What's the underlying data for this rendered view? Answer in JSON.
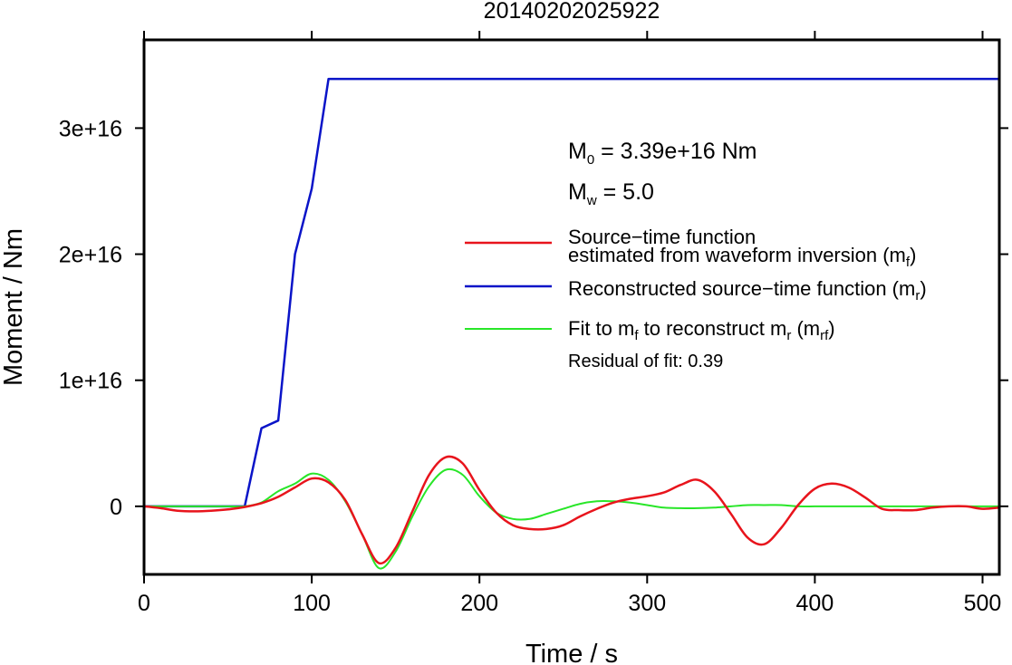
{
  "chart_data": {
    "type": "line",
    "title": "20140202025922",
    "xlabel": "Time / s",
    "ylabel": "Moment / Nm",
    "xlim": [
      0,
      510
    ],
    "ylim": [
      -5400000000000000.0,
      3.7e+16
    ],
    "x_ticks": [
      0,
      100,
      200,
      300,
      400,
      500
    ],
    "x_tick_labels": [
      "0",
      "100",
      "200",
      "300",
      "400",
      "500"
    ],
    "y_ticks": [
      0,
      1e+16,
      2e+16,
      3e+16
    ],
    "y_tick_labels": [
      "0",
      "1e+16",
      "2e+16",
      "3e+16"
    ],
    "grid": false,
    "legend_position": "right",
    "annotations": {
      "m0": {
        "prefix": "M",
        "sub": "0",
        "rest": " = 3.39e+16 Nm"
      },
      "mw": {
        "prefix": "M",
        "sub": "w",
        "rest": " = 5.0"
      },
      "residual": "Residual of fit: 0.39"
    },
    "legend": [
      {
        "key": "red",
        "lines": [
          "Source−time function",
          "estimated from waveform inversion (m"
        ],
        "sub": "f",
        "tail": ")"
      },
      {
        "key": "blue",
        "text": "Reconstructed source−time function (m",
        "sub": "r",
        "tail": ")"
      },
      {
        "key": "green",
        "text_a": "Fit to m",
        "sub_a": "f",
        "text_b": " to reconstruct m",
        "sub_b": "r",
        "text_c": " (m",
        "sub_c": "rf",
        "tail": ")"
      }
    ],
    "series": [
      {
        "key": "red",
        "color": "#e8141c",
        "x": [
          0,
          10,
          20,
          30,
          40,
          50,
          60,
          70,
          80,
          90,
          100,
          110,
          120,
          130,
          140,
          150,
          160,
          170,
          180,
          190,
          200,
          210,
          220,
          230,
          240,
          250,
          260,
          270,
          280,
          290,
          300,
          310,
          320,
          330,
          340,
          350,
          360,
          370,
          380,
          390,
          400,
          410,
          420,
          430,
          440,
          450,
          460,
          470,
          480,
          490,
          500,
          510
        ],
        "y": [
          0,
          -150000000000000.0,
          -350000000000000.0,
          -400000000000000.0,
          -350000000000000.0,
          -250000000000000.0,
          -50000000000000.0,
          250000000000000.0,
          750000000000000.0,
          1500000000000000.0,
          2200000000000000.0,
          1900000000000000.0,
          500000000000000.0,
          -2200000000000000.0,
          -4500000000000000.0,
          -3300000000000000.0,
          -400000000000000.0,
          2500000000000000.0,
          3900000000000000.0,
          3400000000000000.0,
          1300000000000000.0,
          -500000000000000.0,
          -1500000000000000.0,
          -1800000000000000.0,
          -1800000000000000.0,
          -1500000000000000.0,
          -800000000000000.0,
          -200000000000000.0,
          300000000000000.0,
          600000000000000.0,
          800000000000000.0,
          1100000000000000.0,
          1700000000000000.0,
          2100000000000000.0,
          1200000000000000.0,
          -600000000000000.0,
          -2500000000000000.0,
          -3000000000000000.0,
          -1700000000000000.0,
          100000000000000.0,
          1400000000000000.0,
          1800000000000000.0,
          1500000000000000.0,
          700000000000000.0,
          -200000000000000.0,
          -300000000000000.0,
          -300000000000000.0,
          -100000000000000.0,
          0,
          0,
          -200000000000000.0,
          -100000000000000.0
        ]
      },
      {
        "key": "blue",
        "color": "#0a14c8",
        "x": [
          0,
          60,
          70,
          80,
          90,
          100,
          110,
          510
        ],
        "y": [
          0,
          0,
          6200000000000000.0,
          6800000000000000.0,
          2e+16,
          2.52e+16,
          3.39e+16,
          3.39e+16
        ]
      },
      {
        "key": "green",
        "color": "#28e628",
        "x": [
          0,
          10,
          20,
          30,
          40,
          50,
          60,
          70,
          80,
          90,
          100,
          110,
          120,
          130,
          140,
          150,
          160,
          170,
          180,
          190,
          200,
          210,
          220,
          230,
          240,
          250,
          260,
          270,
          280,
          290,
          300,
          310,
          320,
          330,
          340,
          350,
          360,
          370,
          380,
          390,
          400,
          410,
          420,
          430,
          440,
          450,
          460,
          470,
          480,
          490,
          500,
          510
        ],
        "y": [
          0,
          0,
          0,
          0,
          0,
          0,
          0,
          300000000000000.0,
          1200000000000000.0,
          1800000000000000.0,
          2600000000000000.0,
          2100000000000000.0,
          400000000000000.0,
          -2200000000000000.0,
          -4900000000000000.0,
          -3600000000000000.0,
          -800000000000000.0,
          1600000000000000.0,
          2900000000000000.0,
          2500000000000000.0,
          800000000000000.0,
          -500000000000000.0,
          -1000000000000000.0,
          -1000000000000000.0,
          -600000000000000.0,
          -200000000000000.0,
          200000000000000.0,
          400000000000000.0,
          400000000000000.0,
          300000000000000.0,
          100000000000000.0,
          -100000000000000.0,
          -150000000000000.0,
          -150000000000000.0,
          -100000000000000.0,
          0,
          100000000000000.0,
          100000000000000.0,
          100000000000000.0,
          0,
          0,
          0,
          0,
          0,
          0,
          0,
          0,
          0,
          0,
          0,
          0,
          0
        ]
      }
    ]
  }
}
